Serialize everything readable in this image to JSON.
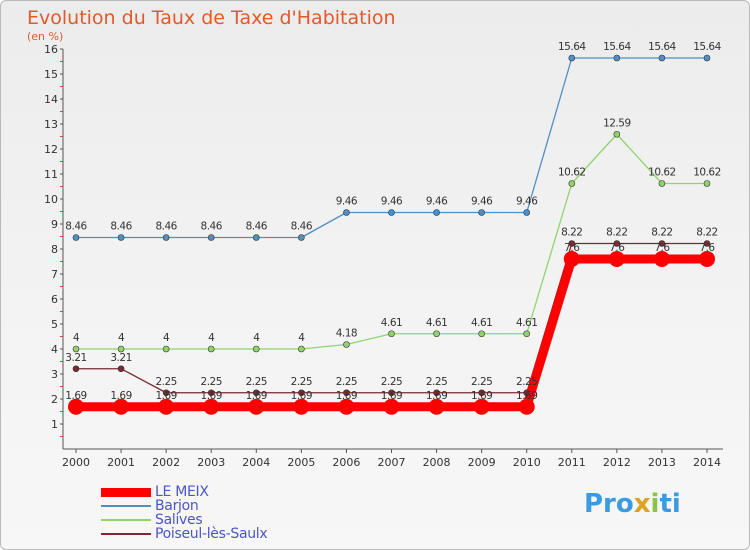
{
  "title": "Evolution du Taux de Taxe d'Habitation",
  "subtitle": "(en %)",
  "logo": {
    "parts": [
      "Pro",
      "x",
      "i",
      "ti"
    ],
    "colors": [
      "#3a9be0",
      "#e0a020",
      "#8bc34a",
      "#3a9be0"
    ]
  },
  "chart_data": {
    "type": "line",
    "x": [
      "2000",
      "2001",
      "2002",
      "2003",
      "2004",
      "2005",
      "2006",
      "2007",
      "2008",
      "2009",
      "2010",
      "2011",
      "2012",
      "2013",
      "2014"
    ],
    "ylim": [
      0,
      16
    ],
    "yticks": [
      1,
      2,
      3,
      4,
      5,
      6,
      7,
      8,
      9,
      10,
      11,
      12,
      13,
      14,
      15,
      16
    ],
    "grid": false,
    "legend_position": "bottom-left",
    "series": [
      {
        "name": "LE MEIX",
        "color": "#ff0000",
        "width": 9,
        "marker": 8,
        "values": [
          1.69,
          1.69,
          1.69,
          1.69,
          1.69,
          1.69,
          1.69,
          1.69,
          1.69,
          1.69,
          1.69,
          7.6,
          7.6,
          7.6,
          7.6
        ],
        "labels": [
          "1.69",
          "1.69",
          "1.69",
          "1.69",
          "1.69",
          "1.69",
          "1.69",
          "1.69",
          "1.69",
          "1.69",
          "1.69",
          "7.6",
          "7.6",
          "7.6",
          "7.6"
        ]
      },
      {
        "name": "Barjon",
        "color": "#4f8fc6",
        "width": 1.3,
        "marker": 3,
        "values": [
          8.46,
          8.46,
          8.46,
          8.46,
          8.46,
          8.46,
          9.46,
          9.46,
          9.46,
          9.46,
          9.46,
          15.64,
          15.64,
          15.64,
          15.64
        ],
        "labels": [
          "8.46",
          "8.46",
          "8.46",
          "8.46",
          "8.46",
          "8.46",
          "9.46",
          "9.46",
          "9.46",
          "9.46",
          "9.46",
          "15.64",
          "15.64",
          "15.64",
          "15.64"
        ]
      },
      {
        "name": "Salives",
        "color": "#8fd46a",
        "width": 1.3,
        "marker": 3,
        "values": [
          4,
          4,
          4,
          4,
          4,
          4,
          4.18,
          4.61,
          4.61,
          4.61,
          4.61,
          10.62,
          12.59,
          10.62,
          10.62
        ],
        "labels": [
          "4",
          "4",
          "4",
          "4",
          "4",
          "4",
          "4.18",
          "4.61",
          "4.61",
          "4.61",
          "4.61",
          "10.62",
          "12.59",
          "10.62",
          "10.62"
        ]
      },
      {
        "name": "Poiseul-lès-Saulx",
        "color": "#7a2a32",
        "width": 1.3,
        "marker": 3,
        "values": [
          3.21,
          3.21,
          2.25,
          2.25,
          2.25,
          2.25,
          2.25,
          2.25,
          2.25,
          2.25,
          2.25,
          8.22,
          8.22,
          8.22,
          8.22
        ],
        "labels": [
          "3.21",
          "3.21",
          "2.25",
          "2.25",
          "2.25",
          "2.25",
          "2.25",
          "2.25",
          "2.25",
          "2.25",
          "2.25",
          "8.22",
          "8.22",
          "8.22",
          "8.22"
        ]
      }
    ]
  }
}
